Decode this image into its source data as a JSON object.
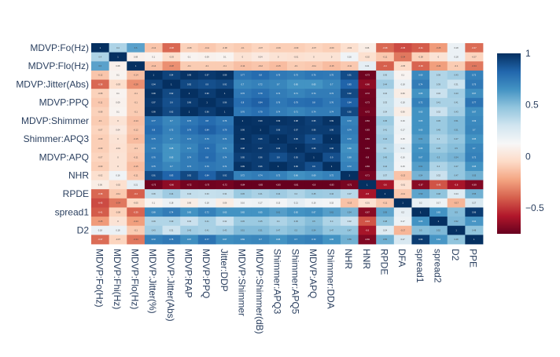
{
  "chart_data": {
    "type": "heatmap",
    "variables": [
      "MDVP:Fo(Hz)",
      "MDVP:Fhi(Hz)",
      "MDVP:Flo(Hz)",
      "MDVP:Jitter(%)",
      "MDVP:Jitter(Abs)",
      "MDVP:RAP",
      "MDVP:PPQ",
      "Jitter:DDP",
      "MDVP:Shimmer",
      "MDVP:Shimmer(dB)",
      "Shimmer:APQ3",
      "Shimmer:APQ5",
      "MDVP:APQ",
      "Shimmer:DDA",
      "NHR",
      "HNR",
      "RPDE",
      "DFA",
      "spread1",
      "spread2",
      "D2",
      "PPE"
    ],
    "x_tick_labels": [
      "MDVP:Fo(Hz)",
      "MDVP:Fhi(Hz)",
      "MDVP:Flo(Hz)",
      "MDVP:Jitter(%)",
      "MDVP:Jitter(Abs)",
      "MDVP:RAP",
      "MDVP:PPQ",
      "Jitter:DDP",
      "MDVP:Shimmer",
      "MDVP:Shimmer(dB)",
      "Shimmer:APQ3",
      "Shimmer:APQ5",
      "MDVP:APQ",
      "Shimmer:DDA",
      "NHR",
      "HNR",
      "RPDE",
      "DFA",
      "spread1",
      "spread2",
      "D2",
      "PPE"
    ],
    "y_tick_labels": [
      "MDVP:Fo(Hz)",
      "MDVP:Flo(Hz)",
      "MDVP:Jitter(Abs)",
      "MDVP:PPQ",
      "MDVP:Shimmer",
      "Shimmer:APQ3",
      "MDVP:APQ",
      "NHR",
      "RPDE",
      "spread1",
      "D2"
    ],
    "y_tick_rows": [
      0,
      2,
      4,
      6,
      8,
      10,
      12,
      14,
      16,
      18,
      20
    ],
    "y_axis_reversed": true,
    "zmin": -0.75,
    "zmax": 1,
    "values": [
      [
        1,
        0.4,
        0.6,
        -0.12,
        -0.38,
        -0.08,
        -0.11,
        -0.08,
        -0.1,
        -0.07,
        -0.09,
        -0.09,
        -0.07,
        -0.09,
        -0.02,
        0.06,
        -0.38,
        -0.45,
        -0.41,
        -0.25,
        0.18,
        -0.37
      ],
      [
        0.4,
        1,
        0.08,
        0.1,
        -0.03,
        0.1,
        0.09,
        0.1,
        0.0,
        0.04,
        -0.0,
        -0.01,
        -0.0,
        -0.0,
        0.16,
        -0.02,
        -0.11,
        -0.34,
        -0.08,
        -0.0,
        0.18,
        -0.07
      ],
      [
        0.6,
        0.08,
        1,
        -0.14,
        -0.28,
        -0.1,
        -0.1,
        -0.1,
        -0.14,
        -0.12,
        -0.15,
        -0.1,
        -0.11,
        -0.15,
        -0.11,
        0.21,
        -0.4,
        -0.05,
        -0.39,
        -0.24,
        -0.1,
        -0.34
      ],
      [
        -0.12,
        0.1,
        -0.14,
        1,
        0.94,
        0.99,
        0.97,
        0.99,
        0.77,
        0.8,
        0.75,
        0.73,
        0.76,
        0.75,
        0.91,
        -0.73,
        0.36,
        0.1,
        0.69,
        0.39,
        0.43,
        0.72
      ],
      [
        -0.38,
        -0.03,
        -0.28,
        0.94,
        1,
        0.92,
        0.9,
        0.92,
        0.7,
        0.72,
        0.7,
        0.65,
        0.65,
        0.7,
        0.83,
        -0.66,
        0.44,
        0.18,
        0.74,
        0.39,
        0.31,
        0.75
      ],
      [
        -0.08,
        0.1,
        -0.1,
        0.99,
        0.92,
        1,
        0.96,
        1,
        0.76,
        0.79,
        0.74,
        0.71,
        0.74,
        0.74,
        0.92,
        -0.72,
        0.34,
        0.06,
        0.65,
        0.32,
        0.43,
        0.67
      ],
      [
        -0.11,
        0.09,
        -0.1,
        0.97,
        0.9,
        0.96,
        1,
        0.96,
        0.8,
        0.84,
        0.76,
        0.79,
        0.8,
        0.76,
        0.84,
        -0.73,
        0.33,
        0.18,
        0.72,
        0.41,
        0.41,
        0.77
      ],
      [
        -0.08,
        0.1,
        -0.1,
        0.99,
        0.92,
        1,
        0.96,
        1,
        0.76,
        0.79,
        0.74,
        0.71,
        0.74,
        0.74,
        0.92,
        -0.72,
        0.34,
        0.06,
        0.65,
        0.32,
        0.43,
        0.67
      ],
      [
        -0.1,
        0.0,
        -0.14,
        0.77,
        0.7,
        0.76,
        0.8,
        0.76,
        1,
        0.99,
        0.99,
        0.98,
        0.95,
        0.99,
        0.72,
        -0.84,
        0.45,
        0.16,
        0.65,
        0.45,
        0.51,
        0.69
      ],
      [
        -0.07,
        0.04,
        -0.12,
        0.8,
        0.72,
        0.79,
        0.84,
        0.79,
        0.99,
        1,
        0.96,
        0.97,
        0.96,
        0.96,
        0.74,
        -0.83,
        0.41,
        0.17,
        0.65,
        0.45,
        0.51,
        0.7
      ],
      [
        -0.09,
        -0.0,
        -0.15,
        0.75,
        0.7,
        0.74,
        0.76,
        0.74,
        0.99,
        0.96,
        1,
        0.96,
        0.9,
        1,
        0.72,
        -0.83,
        0.44,
        0.15,
        0.61,
        0.4,
        0.47,
        0.65
      ],
      [
        -0.09,
        -0.01,
        -0.1,
        0.73,
        0.65,
        0.71,
        0.79,
        0.71,
        0.98,
        0.97,
        0.96,
        1,
        0.95,
        0.96,
        0.66,
        -0.81,
        0.4,
        0.21,
        0.65,
        0.45,
        0.5,
        0.7
      ],
      [
        -0.07,
        -0.0,
        -0.11,
        0.76,
        0.65,
        0.74,
        0.8,
        0.74,
        0.95,
        0.96,
        0.9,
        0.95,
        1,
        0.9,
        0.69,
        -0.8,
        0.45,
        0.16,
        0.67,
        0.5,
        0.54,
        0.72
      ],
      [
        -0.09,
        -0.0,
        -0.15,
        0.75,
        0.7,
        0.74,
        0.76,
        0.74,
        0.99,
        0.96,
        1,
        0.96,
        0.9,
        1,
        0.72,
        -0.83,
        0.44,
        0.15,
        0.61,
        0.4,
        0.47,
        0.65
      ],
      [
        -0.02,
        0.16,
        -0.11,
        0.91,
        0.83,
        0.92,
        0.84,
        0.92,
        0.72,
        0.74,
        0.72,
        0.66,
        0.69,
        0.72,
        1,
        -0.71,
        0.37,
        -0.13,
        0.54,
        0.32,
        0.47,
        0.55
      ],
      [
        0.06,
        -0.02,
        0.21,
        -0.73,
        -0.66,
        -0.72,
        -0.73,
        -0.72,
        -0.84,
        -0.83,
        -0.83,
        -0.81,
        -0.8,
        -0.83,
        -0.71,
        1,
        -0.6,
        -0.01,
        -0.67,
        -0.43,
        -0.6,
        -0.69
      ],
      [
        -0.38,
        -0.11,
        -0.4,
        0.36,
        0.44,
        0.34,
        0.33,
        0.34,
        0.45,
        0.41,
        0.44,
        0.4,
        0.45,
        0.44,
        0.37,
        -0.6,
        1,
        -0.11,
        0.59,
        0.48,
        0.24,
        0.55
      ],
      [
        -0.45,
        -0.34,
        -0.05,
        0.1,
        0.18,
        0.06,
        0.18,
        0.06,
        0.16,
        0.17,
        0.15,
        0.21,
        0.16,
        0.15,
        -0.13,
        -0.01,
        -0.11,
        1,
        0.2,
        0.17,
        -0.17,
        0.27
      ],
      [
        -0.41,
        -0.08,
        -0.39,
        0.69,
        0.74,
        0.65,
        0.72,
        0.65,
        0.65,
        0.65,
        0.61,
        0.65,
        0.67,
        0.61,
        0.54,
        -0.67,
        0.59,
        0.2,
        1,
        0.65,
        0.5,
        0.96
      ],
      [
        -0.25,
        -0.0,
        -0.24,
        0.39,
        0.39,
        0.32,
        0.41,
        0.32,
        0.45,
        0.45,
        0.4,
        0.45,
        0.5,
        0.4,
        0.32,
        -0.43,
        0.48,
        0.17,
        0.65,
        1,
        0.52,
        0.64
      ],
      [
        0.18,
        0.18,
        -0.1,
        0.43,
        0.31,
        0.43,
        0.41,
        0.43,
        0.51,
        0.51,
        0.47,
        0.5,
        0.54,
        0.47,
        0.47,
        -0.6,
        0.24,
        -0.17,
        0.5,
        0.52,
        1,
        0.48
      ],
      [
        -0.37,
        -0.07,
        -0.34,
        0.72,
        0.75,
        0.67,
        0.77,
        0.67,
        0.69,
        0.7,
        0.65,
        0.7,
        0.72,
        0.65,
        0.55,
        -0.69,
        0.55,
        0.27,
        0.96,
        0.64,
        0.48,
        1
      ]
    ],
    "colorbar": {
      "ticks": [
        -0.5,
        0,
        0.5,
        1
      ],
      "tick_labels": [
        "−0.5",
        "0",
        "0.5",
        "1"
      ]
    },
    "colorscale": [
      [
        0,
        "#67001f"
      ],
      [
        0.1,
        "#b2182b"
      ],
      [
        0.2,
        "#d6604d"
      ],
      [
        0.3,
        "#f4a582"
      ],
      [
        0.4,
        "#fddbc7"
      ],
      [
        0.5,
        "#f7f7f7"
      ],
      [
        0.6,
        "#d1e5f0"
      ],
      [
        0.7,
        "#92c5de"
      ],
      [
        0.8,
        "#4393c3"
      ],
      [
        0.9,
        "#2166ac"
      ],
      [
        1,
        "#053061"
      ]
    ],
    "axis_text_color": "#2a3f5f",
    "title": "",
    "xlabel": "",
    "ylabel": ""
  }
}
